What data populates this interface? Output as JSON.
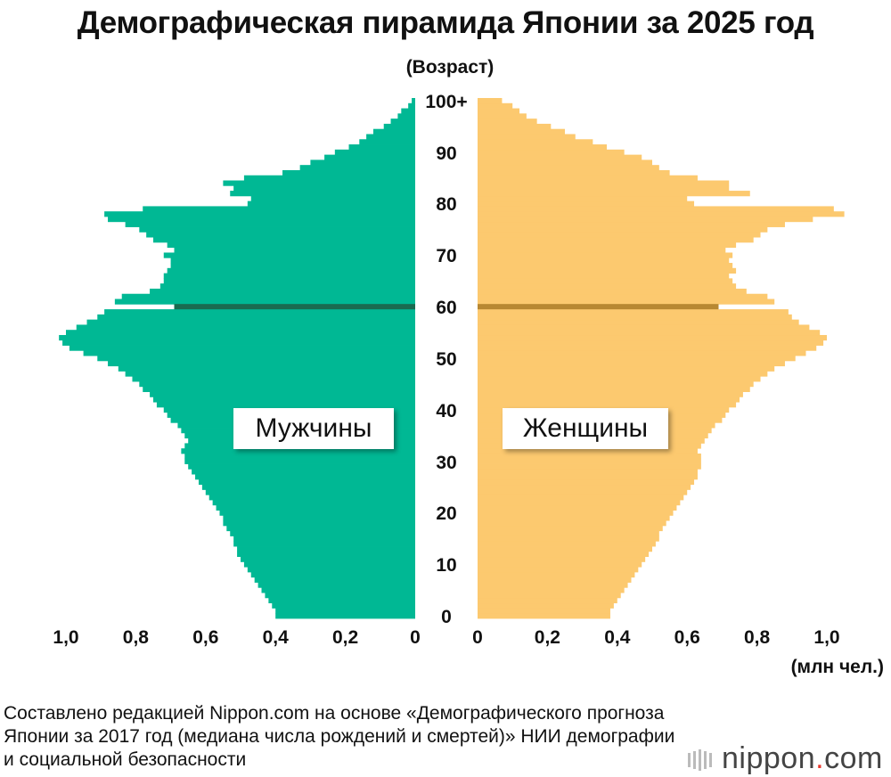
{
  "title": "Демографическая пирамида Японии за 2025 год",
  "age_unit": "(Возраст)",
  "x_unit": "(млн чел.)",
  "legend": {
    "male": "Мужчины",
    "female": "Женщины"
  },
  "source": "Составлено редакцией Nippon.com на основе «Демографического прогноза Японии за 2017 год (медиана числа рождений и смертей)» НИИ демографии и социальной безопасности",
  "logo": {
    "name": "nippon",
    "dot": ".",
    "tld": "com"
  },
  "colors": {
    "male": "#00b894",
    "female": "#fcc96f",
    "male_marker": "#1a6b50",
    "female_marker": "#b88832"
  },
  "chart_data": {
    "type": "bar",
    "orientation": "horizontal-pyramid",
    "xlabel": "(млн чел.)",
    "ylabel": "(Возраст)",
    "xlim": [
      0,
      1.0
    ],
    "x_tick_labels_left": [
      "1,0",
      "0,8",
      "0,6",
      "0,4",
      "0,2",
      "0"
    ],
    "x_tick_labels_right": [
      "0",
      "0,2",
      "0,4",
      "0,6",
      "0,8",
      "1,0"
    ],
    "y_tick_labels": [
      "0",
      "10",
      "20",
      "30",
      "40",
      "50",
      "60",
      "70",
      "80",
      "90",
      "100+"
    ],
    "marker_age": 60,
    "marker_values": {
      "male": 0.69,
      "female": 0.69
    },
    "series": [
      {
        "name": "Мужчины",
        "values": [
          0.4,
          0.4,
          0.41,
          0.42,
          0.43,
          0.44,
          0.45,
          0.46,
          0.47,
          0.48,
          0.49,
          0.5,
          0.51,
          0.51,
          0.52,
          0.52,
          0.53,
          0.54,
          0.55,
          0.55,
          0.56,
          0.57,
          0.58,
          0.59,
          0.6,
          0.61,
          0.62,
          0.63,
          0.64,
          0.65,
          0.66,
          0.66,
          0.67,
          0.66,
          0.65,
          0.66,
          0.67,
          0.68,
          0.7,
          0.71,
          0.72,
          0.74,
          0.75,
          0.76,
          0.78,
          0.79,
          0.81,
          0.83,
          0.85,
          0.88,
          0.91,
          0.95,
          0.99,
          1.01,
          1.02,
          1.0,
          0.97,
          0.94,
          0.91,
          0.89,
          0.69,
          0.86,
          0.84,
          0.76,
          0.73,
          0.72,
          0.72,
          0.71,
          0.7,
          0.7,
          0.72,
          0.69,
          0.71,
          0.75,
          0.77,
          0.79,
          0.83,
          0.88,
          0.89,
          0.78,
          0.48,
          0.47,
          0.53,
          0.52,
          0.55,
          0.49,
          0.38,
          0.33,
          0.3,
          0.26,
          0.23,
          0.19,
          0.16,
          0.14,
          0.12,
          0.09,
          0.07,
          0.05,
          0.04,
          0.02,
          0.01
        ]
      },
      {
        "name": "Женщины",
        "values": [
          0.38,
          0.38,
          0.39,
          0.4,
          0.41,
          0.42,
          0.43,
          0.44,
          0.45,
          0.46,
          0.47,
          0.48,
          0.49,
          0.5,
          0.51,
          0.52,
          0.52,
          0.53,
          0.54,
          0.55,
          0.56,
          0.57,
          0.58,
          0.59,
          0.6,
          0.61,
          0.62,
          0.63,
          0.63,
          0.64,
          0.64,
          0.64,
          0.63,
          0.64,
          0.65,
          0.66,
          0.67,
          0.68,
          0.7,
          0.71,
          0.72,
          0.74,
          0.75,
          0.76,
          0.78,
          0.79,
          0.81,
          0.83,
          0.85,
          0.88,
          0.91,
          0.94,
          0.97,
          0.99,
          1.0,
          0.98,
          0.95,
          0.92,
          0.9,
          0.89,
          0.69,
          0.85,
          0.83,
          0.77,
          0.74,
          0.73,
          0.72,
          0.74,
          0.73,
          0.72,
          0.73,
          0.71,
          0.74,
          0.79,
          0.81,
          0.83,
          0.88,
          0.96,
          1.05,
          1.02,
          0.62,
          0.6,
          0.78,
          0.72,
          0.72,
          0.63,
          0.55,
          0.52,
          0.5,
          0.47,
          0.42,
          0.37,
          0.33,
          0.28,
          0.25,
          0.21,
          0.17,
          0.14,
          0.12,
          0.1,
          0.07
        ]
      }
    ]
  }
}
